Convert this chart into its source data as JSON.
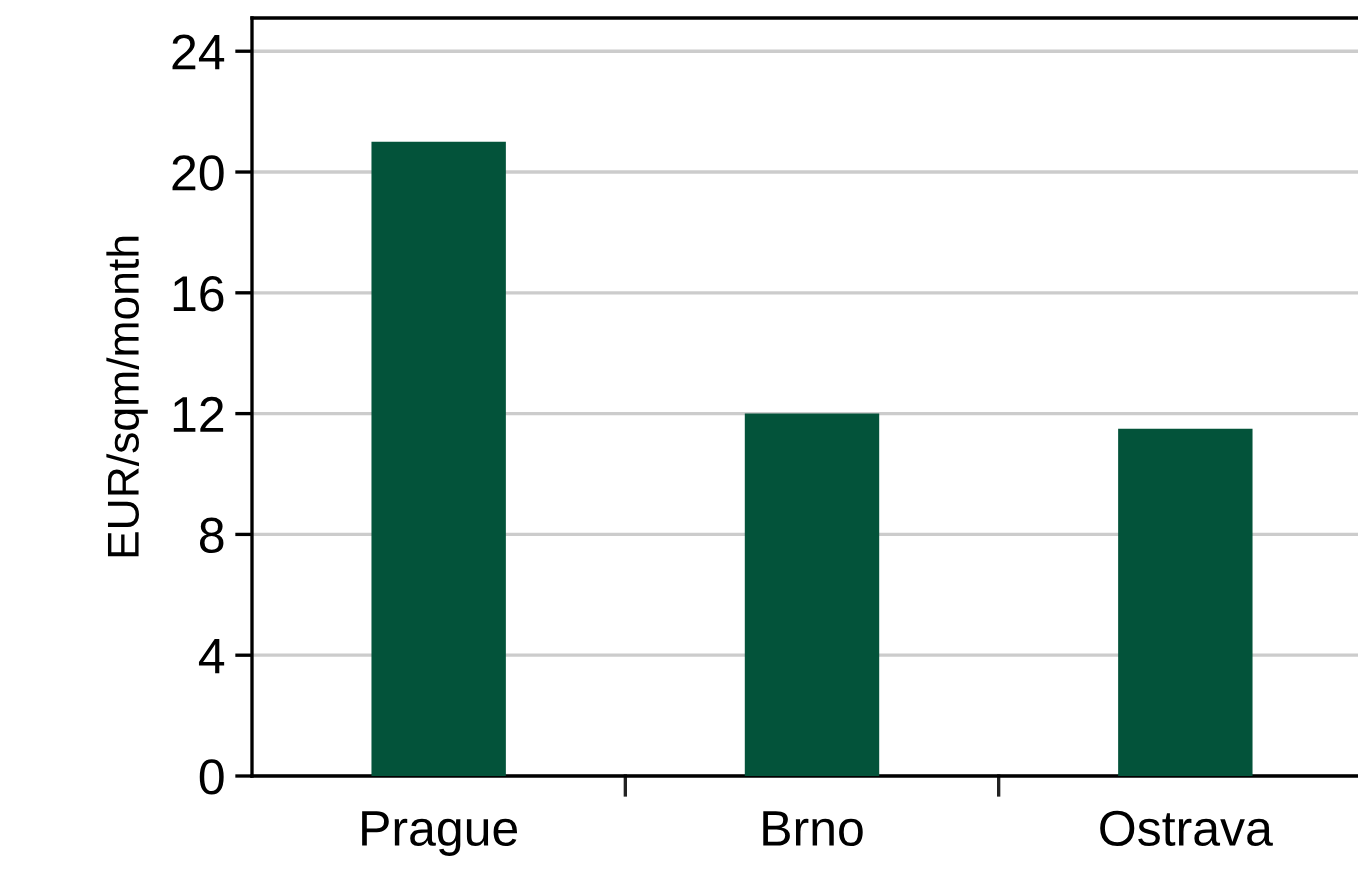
{
  "chart_data": {
    "type": "bar",
    "ylabel": "EUR/sqm/month",
    "categories": [
      "Prague",
      "Brno",
      "Ostrava"
    ],
    "values": [
      21,
      12,
      11.5
    ],
    "color": "#03533a",
    "ylim": [
      0,
      25.1
    ],
    "yticks": [
      0,
      4,
      8,
      12,
      16,
      20,
      24
    ],
    "grid": "y"
  }
}
